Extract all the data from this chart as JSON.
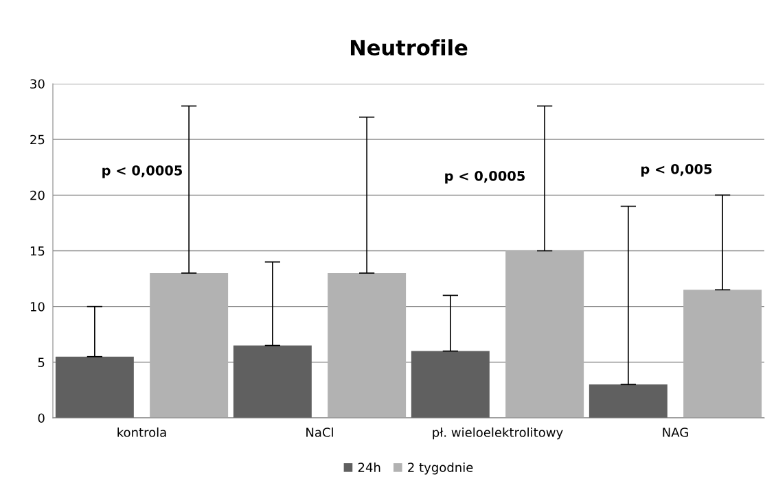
{
  "chart_data": {
    "type": "bar",
    "title": "Neutrofile",
    "categories": [
      "kontrola",
      "NaCl",
      "pł. wieloelektrolitowy",
      "NAG"
    ],
    "series": [
      {
        "name": "24h",
        "color": "#606060",
        "values": [
          5.5,
          6.5,
          6,
          3
        ],
        "errors": [
          [
            5.5,
            10
          ],
          [
            6.5,
            14
          ],
          [
            6,
            11
          ],
          [
            3,
            19
          ]
        ]
      },
      {
        "name": "2 tygodnie",
        "color": "#b2b2b2",
        "values": [
          13,
          13,
          15,
          11.5
        ],
        "errors": [
          [
            13,
            28
          ],
          [
            13,
            27
          ],
          [
            15,
            28
          ],
          [
            11.5,
            20
          ]
        ]
      }
    ],
    "ylim": [
      0,
      30
    ],
    "yticks": [
      0,
      5,
      10,
      15,
      20,
      25,
      30
    ],
    "grid": "y",
    "legend": "bottom",
    "annotations": [
      "p < 0,0005",
      "p < 0,0005",
      "p < 0,005"
    ]
  }
}
